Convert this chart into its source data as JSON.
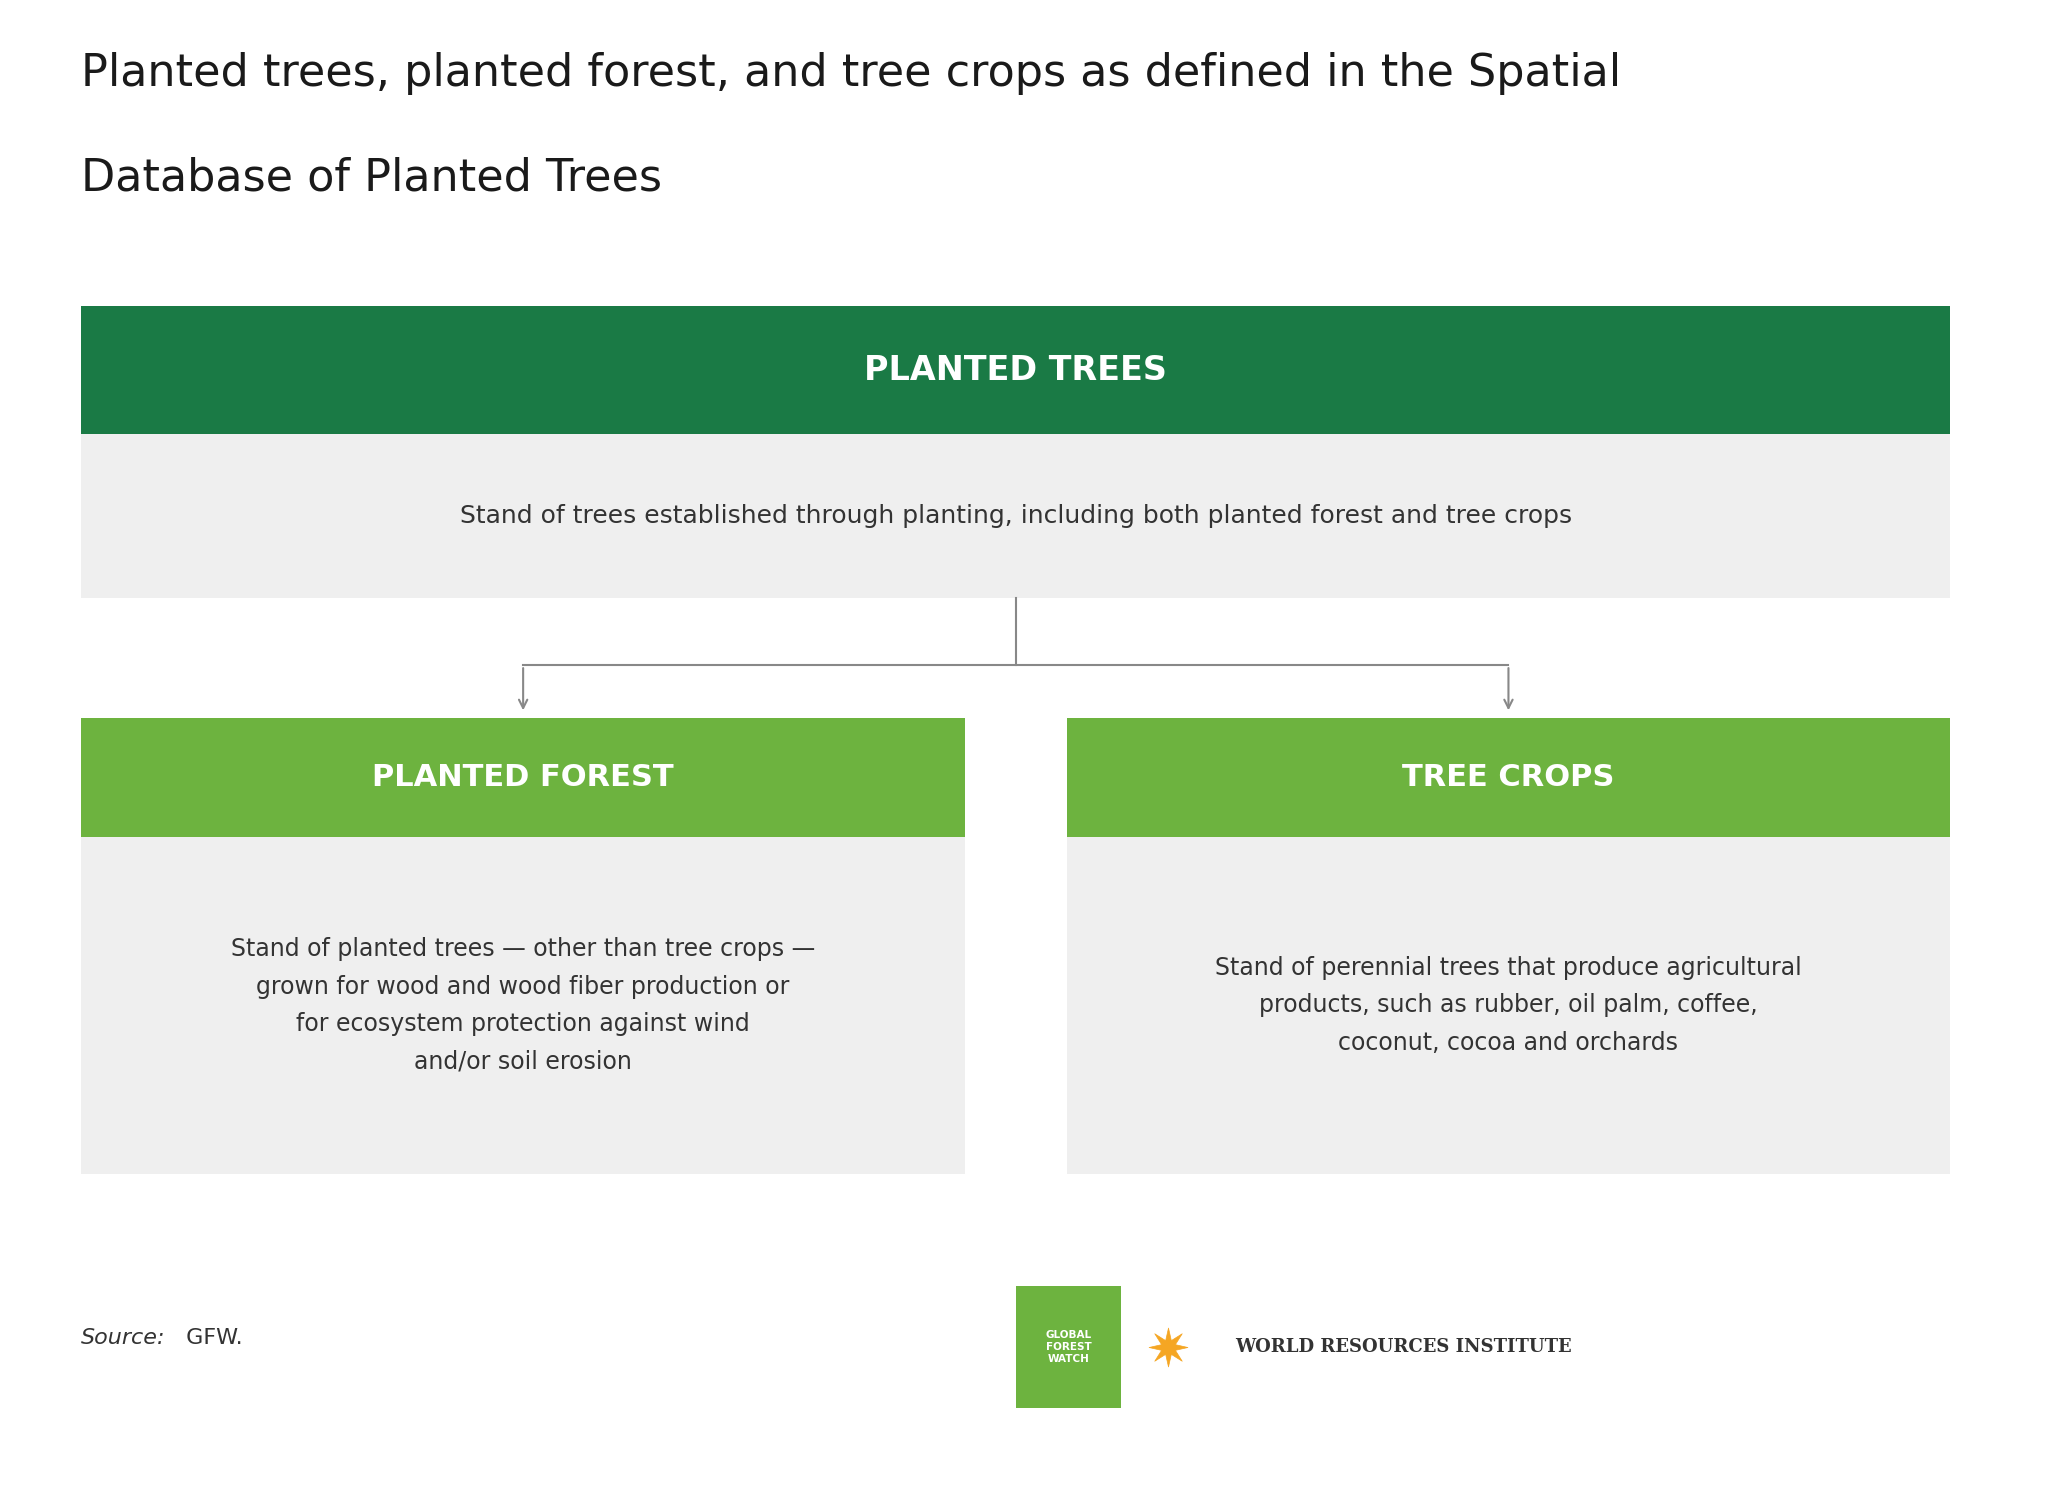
{
  "title_line1": "Planted trees, planted forest, and tree crops as defined in the Spatial",
  "title_line2": "Database of Planted Trees",
  "title_fontsize": 32,
  "title_color": "#1a1a1a",
  "bg_color": "#ffffff",
  "dark_green": "#1a7a45",
  "light_green": "#6db33f",
  "light_gray": "#efefef",
  "arrow_color": "#888888",
  "planted_trees_label": "PLANTED TREES",
  "planted_trees_desc": "Stand of trees established through planting, including both planted forest and tree crops",
  "planted_forest_label": "PLANTED FOREST",
  "planted_forest_desc": "Stand of planted trees — other than tree crops —\ngrown for wood and wood fiber production or\nfor ecosystem protection against wind\nand/or soil erosion",
  "tree_crops_label": "TREE CROPS",
  "tree_crops_desc": "Stand of perennial trees that produce agricultural\nproducts, such as rubber, oil palm, coffee,\ncoconut, cocoa and orchards",
  "source_italic": "Source:",
  "source_text": " GFW.",
  "gfw_bg": "#6db33f",
  "gfw_text": "GLOBAL\nFOREST\nWATCH",
  "wri_text": "WORLD RESOURCES INSTITUTE",
  "label_fontsize": 20,
  "desc_fontsize": 18,
  "source_fontsize": 16
}
